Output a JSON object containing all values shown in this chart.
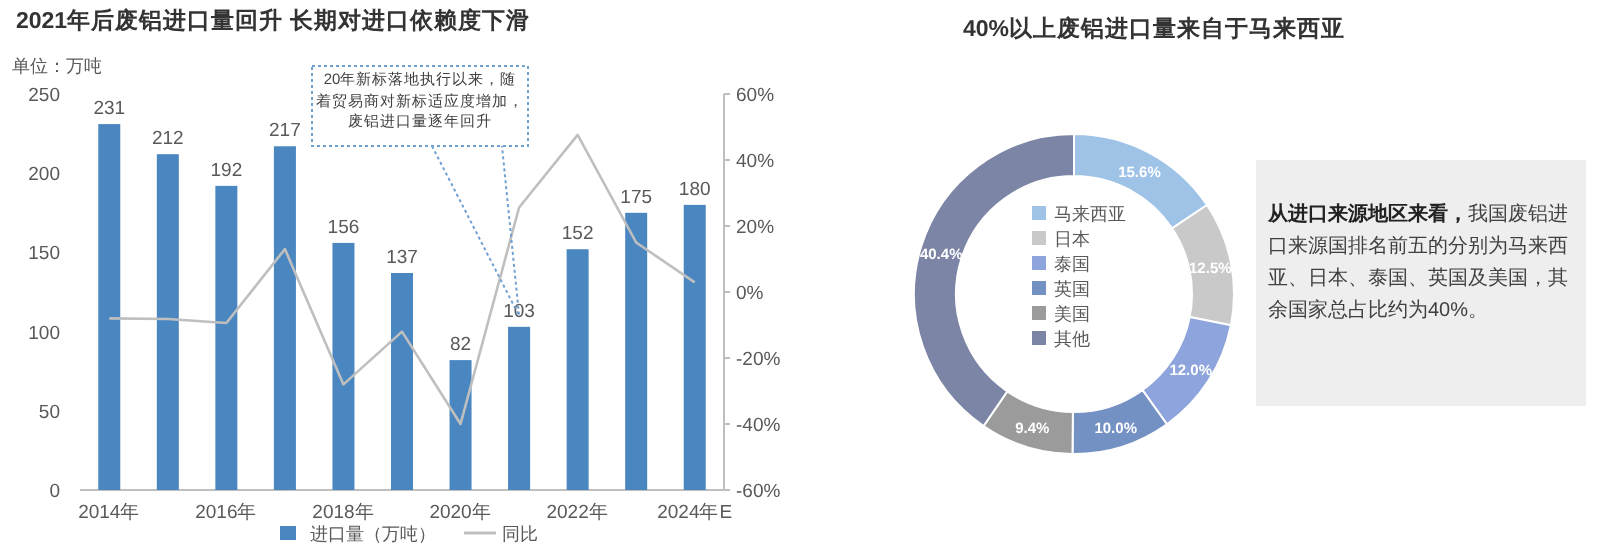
{
  "chart_data": [
    {
      "type": "bar",
      "title": "2021年后废铝进口量回升 长期对进口依赖度下滑",
      "ylabel": "单位：万吨",
      "categories": [
        "2014年",
        null,
        "2016年",
        null,
        "2018年",
        null,
        "2020年",
        null,
        "2022年",
        null,
        "2024年E"
      ],
      "series": [
        {
          "name": "进口量（万吨）",
          "color": "#4a86bf",
          "values": [
            231,
            212,
            192,
            217,
            156,
            137,
            82,
            103,
            152,
            175,
            180
          ],
          "value_labels": [
            "231",
            "212",
            "192",
            "217",
            "156",
            "137",
            "82",
            "103",
            "152",
            "175",
            "180"
          ]
        },
        {
          "name": "同比",
          "type": "line",
          "axis": "y2",
          "color": "#bfbfbf",
          "values": [
            -8,
            -8.2,
            -9.4,
            13,
            -28,
            -12,
            -40,
            25.6,
            47.6,
            15,
            2.9
          ]
        }
      ],
      "ylim": [
        0,
        250
      ],
      "yticks": [
        0,
        50,
        100,
        150,
        200,
        250
      ],
      "y2lim": [
        -60,
        60
      ],
      "y2ticks": [
        {
          "value": -60,
          "label": "-60%"
        },
        {
          "value": -40,
          "label": "-40%"
        },
        {
          "value": -20,
          "label": "-20%"
        },
        {
          "value": 0,
          "label": "0%"
        },
        {
          "value": 20,
          "label": "20%"
        },
        {
          "value": 40,
          "label": "40%"
        },
        {
          "value": 60,
          "label": "60%"
        }
      ],
      "annotations": [
        "20年新标落地执行以来，随着贸易商对新标适应度增加，废铝进口量逐年回升"
      ],
      "legend": "bottom"
    },
    {
      "type": "donut",
      "title": "40%以上废铝进口量来自于马来西亚",
      "categories": [
        "马来西亚",
        "日本",
        "泰国",
        "英国",
        "美国",
        "其他"
      ],
      "values": [
        15.6,
        12.5,
        12.0,
        10.0,
        9.4,
        40.4
      ],
      "value_labels": [
        "15.6%",
        "12.5%",
        "12.0%",
        "10.0%",
        "9.4%",
        "40.4%"
      ],
      "colors": [
        "#9fc2e7",
        "#c9c9c9",
        "#8ea4dc",
        "#7491c4",
        "#9b9b9b",
        "#7c85a5"
      ],
      "legend": "center"
    },
    {
      "type": "other",
      "annotations": [
        "从进口来源地区来看，",
        "我国废铝进口来源国排名前五的分别为马来西亚、日本、泰国、英国及美国，其余国家总占比约为40%。"
      ]
    }
  ]
}
